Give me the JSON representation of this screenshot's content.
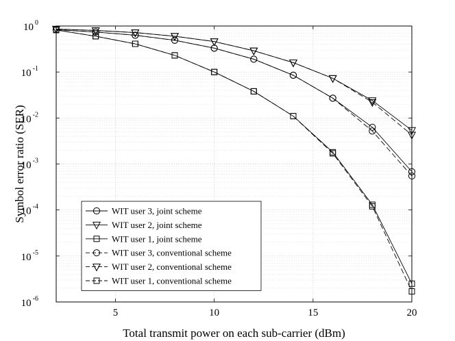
{
  "chart_data": {
    "type": "line",
    "xlabel": "Total transmit power on each sub-carrier (dBm)",
    "ylabel": "Symbol error ratio (SER)",
    "xlim": [
      2,
      20
    ],
    "ylim_log10": [
      -6,
      0
    ],
    "yscale": "log",
    "grid": true,
    "x_ticks": [
      5,
      10,
      15,
      20
    ],
    "x_tick_labels": [
      "5",
      "10",
      "15",
      "20"
    ],
    "y_ticks_base": "10",
    "y_tick_exponents": [
      "0",
      "-1",
      "-2",
      "-3",
      "-4",
      "-5",
      "-6"
    ],
    "legend_position": "lower-left",
    "x": [
      2,
      4,
      6,
      8,
      10,
      12,
      14,
      16,
      18,
      20
    ],
    "series": [
      {
        "name": "WIT user 3, joint scheme",
        "marker": "circle",
        "linestyle": "solid",
        "values": [
          0.83,
          0.74,
          0.63,
          0.49,
          0.33,
          0.19,
          0.085,
          0.027,
          0.0063,
          0.00068
        ]
      },
      {
        "name": "WIT user 2, joint scheme",
        "marker": "triangle-down",
        "linestyle": "solid",
        "values": [
          0.86,
          0.8,
          0.72,
          0.6,
          0.46,
          0.29,
          0.16,
          0.073,
          0.024,
          0.0054
        ]
      },
      {
        "name": "WIT user 1, joint scheme",
        "marker": "square",
        "linestyle": "solid",
        "values": [
          0.82,
          0.6,
          0.41,
          0.23,
          0.1,
          0.038,
          0.011,
          0.0018,
          0.00013,
          2.5e-06
        ]
      },
      {
        "name": "WIT user 3, conventional scheme",
        "marker": "circle",
        "linestyle": "dashed",
        "values": [
          0.83,
          0.74,
          0.63,
          0.49,
          0.33,
          0.19,
          0.085,
          0.027,
          0.0052,
          0.00055
        ]
      },
      {
        "name": "WIT user 2, conventional scheme",
        "marker": "triangle-down",
        "linestyle": "dashed",
        "values": [
          0.86,
          0.8,
          0.72,
          0.6,
          0.46,
          0.29,
          0.16,
          0.073,
          0.022,
          0.0043
        ]
      },
      {
        "name": "WIT user 1, conventional scheme",
        "marker": "square",
        "linestyle": "dashed",
        "values": [
          0.82,
          0.6,
          0.41,
          0.23,
          0.1,
          0.038,
          0.011,
          0.0017,
          0.00012,
          1.7e-06
        ]
      }
    ]
  }
}
